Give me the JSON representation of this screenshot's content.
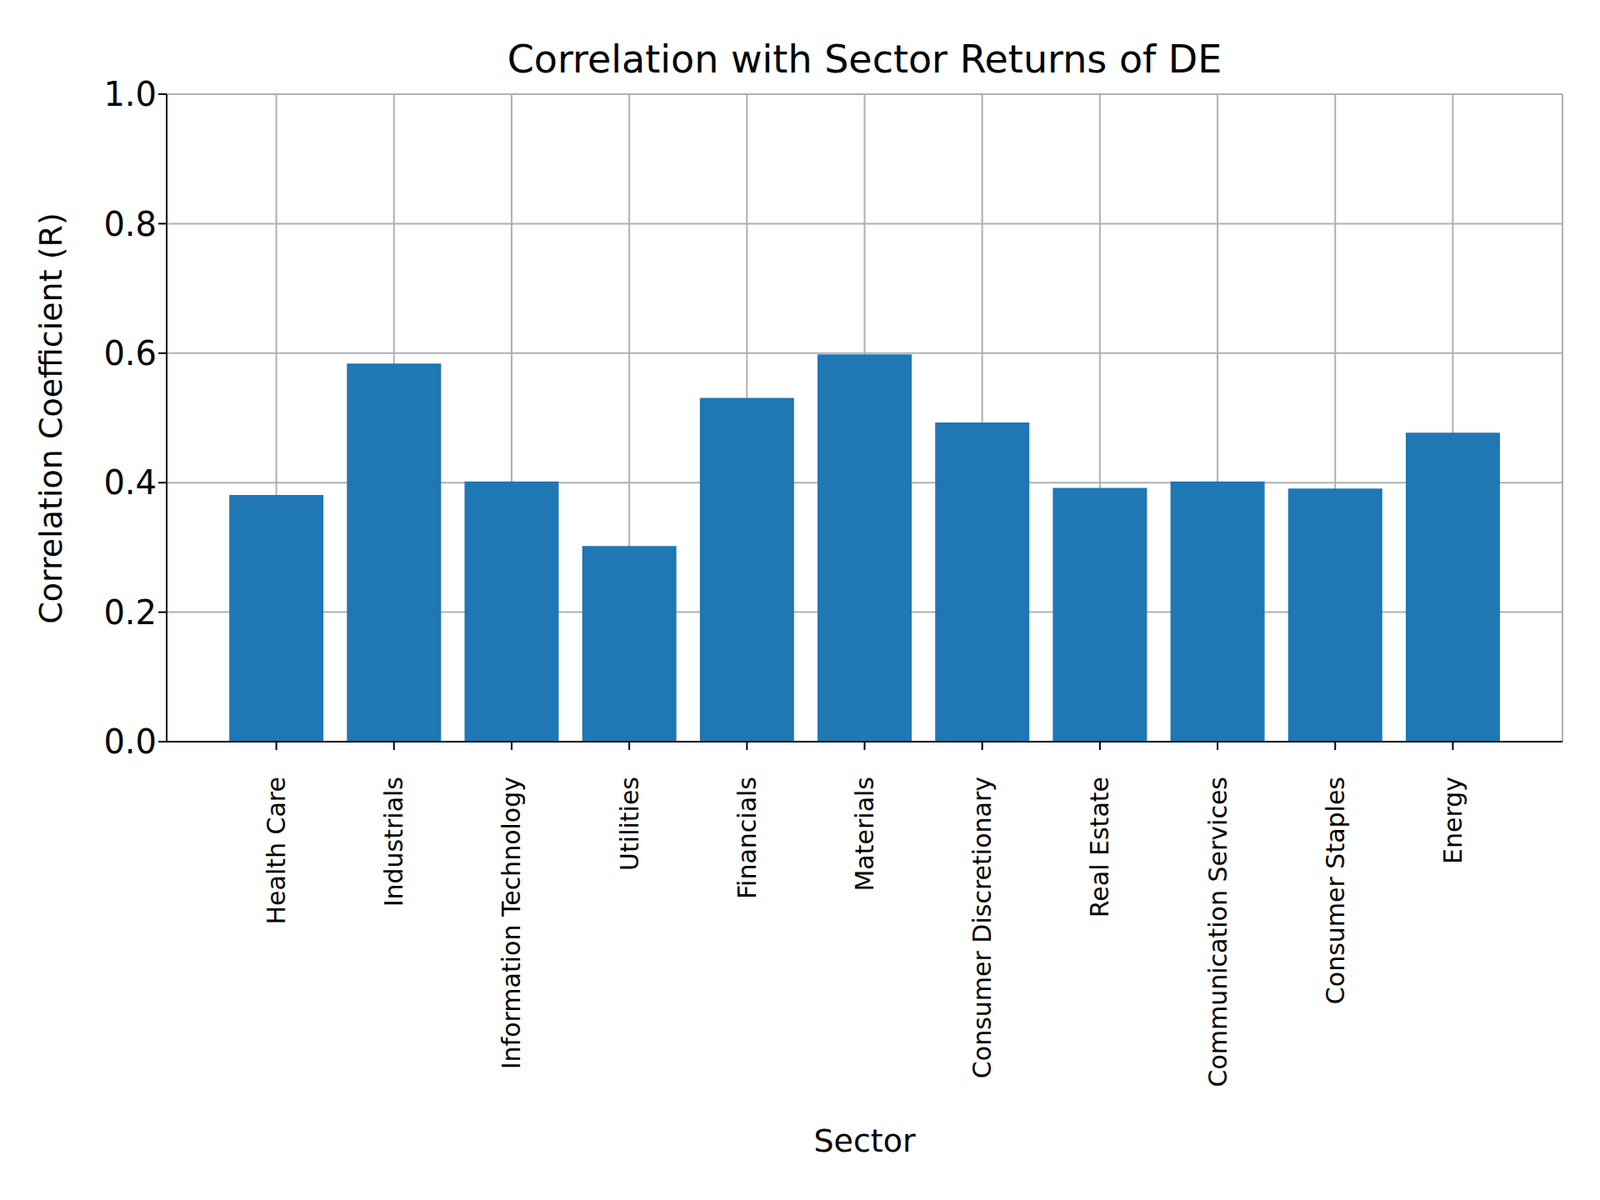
{
  "chart_data": {
    "type": "bar",
    "title": "Correlation with Sector Returns of DE",
    "x_label": "Sector",
    "y_label": "Correlation Coefficient (R)",
    "categories": [
      "Health Care",
      "Industrials",
      "Information Technology",
      "Utilities",
      "Financials",
      "Materials",
      "Consumer Discretionary",
      "Real Estate",
      "Communication Services",
      "Consumer Staples",
      "Energy"
    ],
    "values": [
      0.381,
      0.584,
      0.402,
      0.302,
      0.531,
      0.598,
      0.493,
      0.392,
      0.402,
      0.391,
      0.477
    ],
    "color": "#1f77b4",
    "ylim": [
      0,
      1
    ],
    "yticks": [
      {
        "value": 0,
        "label": "0.0"
      },
      0.2,
      0.4,
      0.6,
      0.8,
      {
        "value": 1,
        "label": "1.0"
      }
    ],
    "grid": true
  }
}
